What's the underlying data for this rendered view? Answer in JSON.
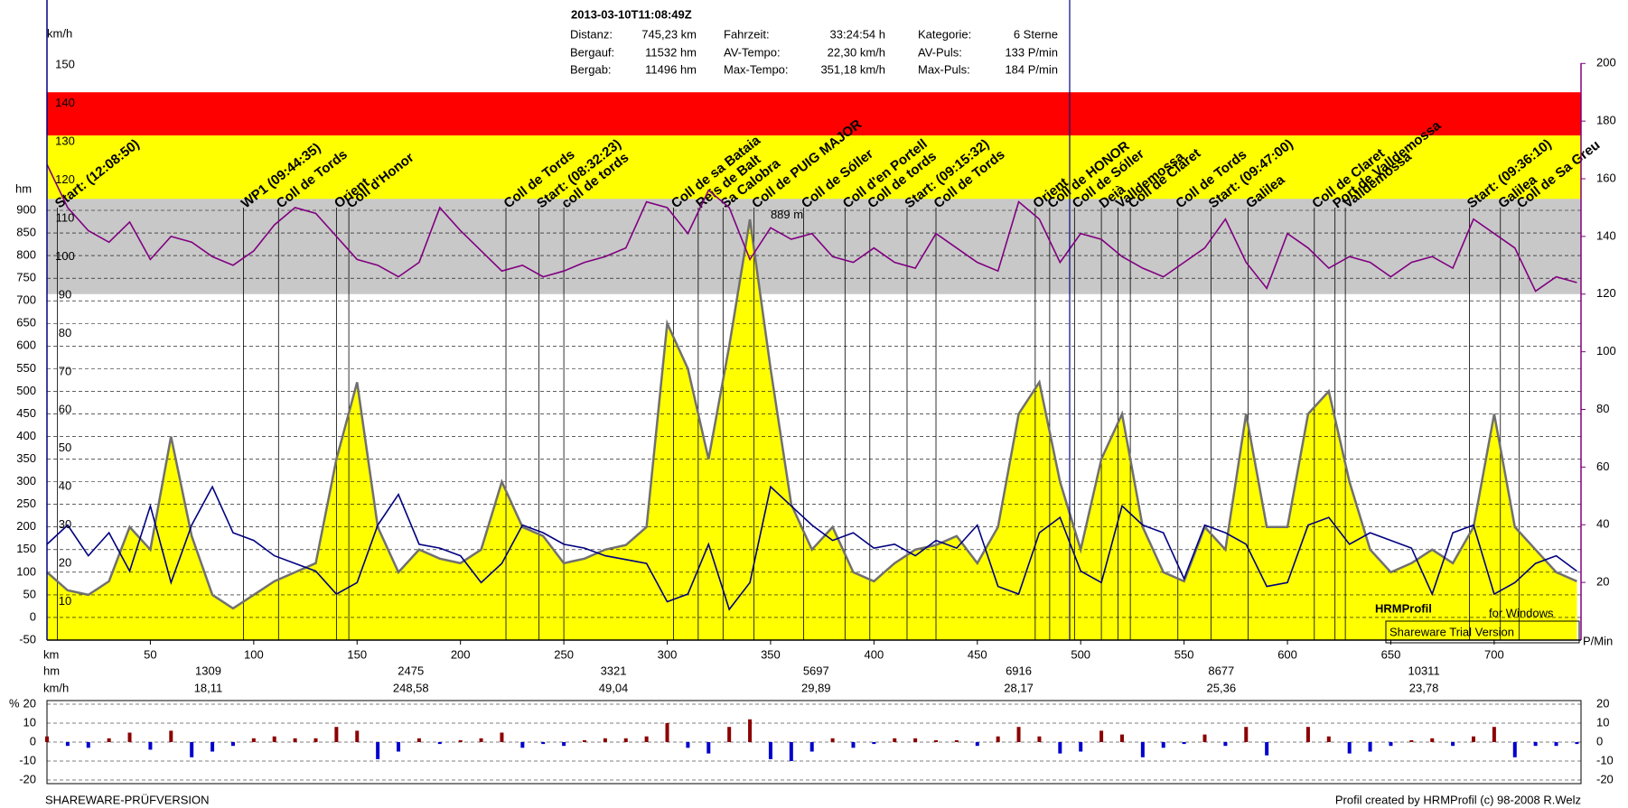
{
  "header": {
    "title": "2013-03-10T11:08:49Z",
    "stats": [
      {
        "label": "Distanz:",
        "value": "745,23 km"
      },
      {
        "label": "Fahrzeit:",
        "value": "33:24:54 h"
      },
      {
        "label": "Kategorie:",
        "value": "6 Sterne"
      },
      {
        "label": "Bergauf:",
        "value": "11532 hm"
      },
      {
        "label": "AV-Tempo:",
        "value": "22,30 km/h"
      },
      {
        "label": "AV-Puls:",
        "value": "133 P/min"
      },
      {
        "label": "Bergab:",
        "value": "11496 hm"
      },
      {
        "label": "Max-Tempo:",
        "value": "351,18 km/h"
      },
      {
        "label": "Max-Puls:",
        "value": "184 P/min"
      }
    ]
  },
  "footer": {
    "left": "SHAREWARE-PRÜFVERSION",
    "right": "Profil created by HRMProfil (c) 98-2008 R.Welz"
  },
  "watermark": {
    "brand": "HRMProfil",
    "platform": "for Windows",
    "notice": "Shareware Trial Version"
  },
  "chart_data": [
    {
      "type": "line",
      "xlabel": "km",
      "ylabel": "hm",
      "y2label": "P/Min",
      "y3label": "km/h",
      "x": [
        0,
        10,
        20,
        30,
        40,
        50,
        60,
        70,
        80,
        90,
        100,
        110,
        120,
        130,
        140,
        150,
        160,
        170,
        180,
        190,
        200,
        210,
        220,
        230,
        240,
        250,
        260,
        270,
        280,
        290,
        300,
        310,
        320,
        330,
        340,
        350,
        360,
        370,
        380,
        390,
        400,
        410,
        420,
        430,
        440,
        450,
        460,
        470,
        480,
        490,
        500,
        510,
        520,
        530,
        540,
        550,
        560,
        570,
        580,
        590,
        600,
        610,
        620,
        630,
        640,
        650,
        660,
        670,
        680,
        690,
        700,
        710,
        720,
        730,
        740
      ],
      "xlim": [
        0,
        742
      ],
      "xticks": [
        50,
        100,
        150,
        200,
        250,
        300,
        350,
        400,
        450,
        500,
        550,
        600,
        650,
        700
      ],
      "ylim": [
        -50,
        1365
      ],
      "yticks": [
        -50,
        0,
        50,
        100,
        150,
        200,
        250,
        300,
        350,
        400,
        450,
        500,
        550,
        600,
        650,
        700,
        750,
        800,
        850,
        900
      ],
      "y2lim": [
        0,
        222
      ],
      "y2ticks": [
        20,
        40,
        60,
        80,
        100,
        120,
        140,
        160,
        180,
        200
      ],
      "y3lim": [
        0,
        167
      ],
      "y3ticks": [
        10,
        20,
        30,
        40,
        50,
        60,
        70,
        80,
        90,
        100,
        110,
        120,
        130,
        140,
        150
      ],
      "zones": [
        {
          "from": 175,
          "to": 190,
          "color": "#ff0000"
        },
        {
          "from": 153,
          "to": 175,
          "color": "#ffff00"
        },
        {
          "from": 120,
          "to": 153,
          "color": "#c8c8c8"
        }
      ],
      "grid": true,
      "series": [
        {
          "axis": "y",
          "fill": "#ffff00",
          "color": "#707070",
          "values": [
            100,
            60,
            50,
            80,
            200,
            150,
            400,
            180,
            50,
            20,
            50,
            80,
            100,
            120,
            350,
            520,
            200,
            100,
            150,
            130,
            120,
            150,
            300,
            200,
            180,
            120,
            130,
            150,
            160,
            200,
            650,
            550,
            350,
            600,
            880,
            550,
            250,
            150,
            200,
            100,
            80,
            120,
            150,
            160,
            180,
            120,
            200,
            450,
            520,
            300,
            150,
            350,
            450,
            200,
            100,
            80,
            200,
            150,
            450,
            200,
            200,
            450,
            500,
            300,
            150,
            100,
            120,
            150,
            120,
            200,
            450,
            200,
            150,
            100,
            80
          ]
        },
        {
          "axis": "y3",
          "color": "#000080",
          "values": [
            25,
            30,
            22,
            28,
            18,
            35,
            15,
            30,
            40,
            28,
            26,
            22,
            20,
            18,
            12,
            15,
            30,
            38,
            25,
            24,
            22,
            15,
            20,
            30,
            28,
            25,
            24,
            22,
            21,
            20,
            10,
            12,
            25,
            8,
            15,
            40,
            35,
            30,
            26,
            28,
            24,
            25,
            22,
            26,
            24,
            30,
            14,
            12,
            28,
            32,
            18,
            15,
            35,
            30,
            28,
            16,
            30,
            28,
            25,
            14,
            15,
            30,
            32,
            25,
            28,
            26,
            24,
            12,
            28,
            30,
            12,
            15,
            20,
            22,
            18
          ]
        },
        {
          "axis": "y2",
          "color": "#800080",
          "values": [
            165,
            150,
            142,
            138,
            145,
            132,
            140,
            138,
            133,
            130,
            135,
            144,
            150,
            148,
            140,
            132,
            130,
            126,
            131,
            150,
            142,
            135,
            128,
            130,
            126,
            128,
            131,
            133,
            136,
            152,
            150,
            141,
            156,
            150,
            132,
            143,
            139,
            141,
            133,
            131,
            136,
            131,
            129,
            141,
            136,
            131,
            128,
            152,
            146,
            131,
            141,
            139,
            133,
            129,
            126,
            131,
            136,
            146,
            131,
            122,
            141,
            136,
            129,
            133,
            131,
            126,
            131,
            133,
            129,
            146,
            141,
            136,
            121,
            126,
            124
          ]
        }
      ],
      "waypoints": [
        {
          "label": "Start: (12:08:50)",
          "km": 5
        },
        {
          "label": "WP1 (09:44:35)",
          "km": 95
        },
        {
          "label": "Coll de Tords",
          "km": 112
        },
        {
          "label": "Orient",
          "km": 140
        },
        {
          "label": "Coll d'Honor",
          "km": 146
        },
        {
          "label": "Coll de Tords",
          "km": 222
        },
        {
          "label": "Start: (08:32:23)",
          "km": 238
        },
        {
          "label": "coll de tords",
          "km": 250
        },
        {
          "label": "Coll de sa Bataia",
          "km": 303
        },
        {
          "label": "Reis de Balt",
          "km": 315
        },
        {
          "label": "Sa Calobra",
          "km": 327
        },
        {
          "label": "Coll de PUIG MAJOR",
          "km": 342
        },
        {
          "label": "Coll de Sóller",
          "km": 366
        },
        {
          "label": "Coll d'en Portell",
          "km": 386
        },
        {
          "label": "Coll de tords",
          "km": 398
        },
        {
          "label": "Start: (09:15:32)",
          "km": 416
        },
        {
          "label": "Coll de Tords",
          "km": 430
        },
        {
          "label": "Orient",
          "km": 478
        },
        {
          "label": "Coll de HONOR",
          "km": 485
        },
        {
          "label": "Coll de Sóller",
          "km": 497
        },
        {
          "label": "Deià",
          "km": 510
        },
        {
          "label": "Valldemossa",
          "km": 518
        },
        {
          "label": "Coll de Claret",
          "km": 524
        },
        {
          "label": "Coll de Tords",
          "km": 547
        },
        {
          "label": "Start: (09:47:00)",
          "km": 563
        },
        {
          "label": "Galilea",
          "km": 581
        },
        {
          "label": "Coll de Claret",
          "km": 613
        },
        {
          "label": "Port de Valldemossa",
          "km": 623
        },
        {
          "label": "Valldemossa",
          "km": 628
        },
        {
          "label": "Start: (09:36:10)",
          "km": 688
        },
        {
          "label": "Galilea",
          "km": 703
        },
        {
          "label": "Coll de Sa Greu",
          "km": 712
        }
      ],
      "annotation": {
        "label": "889 m",
        "km": 350,
        "hm": 889,
        "color": "#ff8000"
      },
      "summary": [
        {
          "label": "hm",
          "color": "#ff0000",
          "values": [
            1309,
            2475,
            3321,
            5697,
            6916,
            8677,
            10311
          ]
        },
        {
          "label": "km/h",
          "color": "#000000",
          "values": [
            18.11,
            248.58,
            49.04,
            29.89,
            28.17,
            25.36,
            23.78
          ],
          "value_labels": [
            "18,11",
            "248,58",
            "49,04",
            "29,89",
            "28,17",
            "25,36",
            "23,78"
          ]
        }
      ]
    },
    {
      "type": "bar",
      "ylabel": "%",
      "x": [
        0,
        10,
        20,
        30,
        40,
        50,
        60,
        70,
        80,
        90,
        100,
        110,
        120,
        130,
        140,
        150,
        160,
        170,
        180,
        190,
        200,
        210,
        220,
        230,
        240,
        250,
        260,
        270,
        280,
        290,
        300,
        310,
        320,
        330,
        340,
        350,
        360,
        370,
        380,
        390,
        400,
        410,
        420,
        430,
        440,
        450,
        460,
        470,
        480,
        490,
        500,
        510,
        520,
        530,
        540,
        550,
        560,
        570,
        580,
        590,
        600,
        610,
        620,
        630,
        640,
        650,
        660,
        670,
        680,
        690,
        700,
        710,
        720,
        730,
        740
      ],
      "xlim": [
        0,
        742
      ],
      "ylim": [
        -20,
        20
      ],
      "yticks": [
        20,
        10,
        0,
        -10,
        -20
      ],
      "grid": true,
      "colors": {
        "positive": "#8b0000",
        "negative": "#0000cd"
      },
      "values": [
        3,
        -2,
        -3,
        2,
        5,
        -4,
        6,
        -8,
        -5,
        -2,
        2,
        3,
        2,
        2,
        8,
        6,
        -9,
        -5,
        2,
        -1,
        1,
        2,
        5,
        -3,
        -1,
        -2,
        1,
        2,
        2,
        3,
        10,
        -3,
        -6,
        8,
        12,
        -9,
        -10,
        -5,
        2,
        -3,
        -1,
        2,
        2,
        1,
        1,
        -2,
        3,
        8,
        3,
        -6,
        -5,
        6,
        4,
        -8,
        -3,
        -1,
        4,
        -2,
        8,
        -7,
        0,
        8,
        3,
        -6,
        -5,
        -2,
        1,
        2,
        -2,
        3,
        8,
        -8,
        -2,
        -2,
        -1
      ]
    }
  ]
}
